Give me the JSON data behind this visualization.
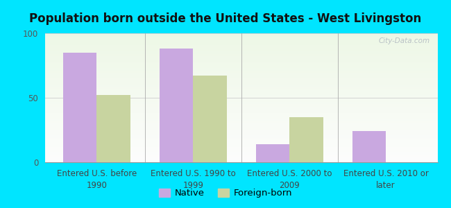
{
  "title": "Population born outside the United States - West Livingston",
  "categories": [
    "Entered U.S. before\n1990",
    "Entered U.S. 1990 to\n1999",
    "Entered U.S. 2000 to\n2009",
    "Entered U.S. 2010 or\nlater"
  ],
  "native_values": [
    85,
    88,
    14,
    24
  ],
  "foreign_values": [
    52,
    67,
    35,
    0
  ],
  "native_color": "#c9a8e0",
  "foreign_color": "#c8d4a0",
  "ylim": [
    0,
    100
  ],
  "yticks": [
    0,
    50,
    100
  ],
  "bar_width": 0.35,
  "outer_bg": "#00e5ff",
  "legend_native": "Native",
  "legend_foreign": "Foreign-born",
  "title_fontsize": 12,
  "tick_fontsize": 8.5,
  "legend_fontsize": 9.5,
  "watermark": "City-Data.com"
}
